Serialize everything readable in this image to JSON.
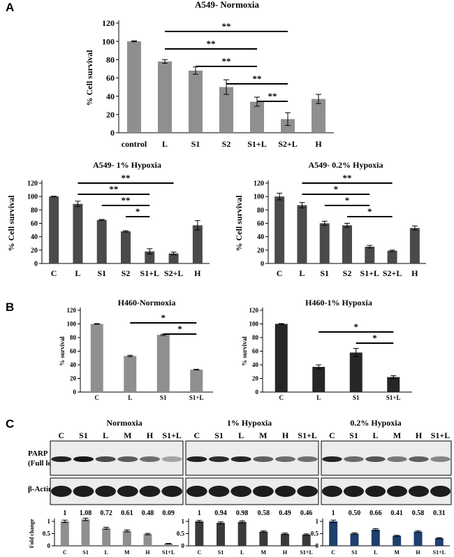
{
  "panels": [
    {
      "label": "A"
    },
    {
      "label": "B"
    },
    {
      "label": "C"
    }
  ],
  "chart_data": [
    {
      "type": "bar",
      "title": "A549- Normoxia",
      "ylabel": "% Cell survival",
      "xlabel": "",
      "categories": [
        "control",
        "L",
        "S1",
        "S2",
        "S1+L",
        "S2+L",
        "H"
      ],
      "values": [
        100,
        78,
        68,
        50,
        34,
        15,
        37
      ],
      "errors": [
        0.5,
        2,
        4,
        8,
        5,
        7,
        5
      ],
      "ylim": [
        0,
        120
      ],
      "yticks": [
        0,
        20,
        40,
        60,
        80,
        100,
        120
      ],
      "bar_color": "#8f8f8f",
      "significance": [
        {
          "from": "L",
          "to": "S2+L",
          "label": "**"
        },
        {
          "from": "L",
          "to": "S1+L",
          "label": "**"
        },
        {
          "from": "S1",
          "to": "S1+L",
          "label": "**"
        },
        {
          "from": "S2",
          "to": "S2+L",
          "label": "**"
        },
        {
          "from": "S1+L",
          "to": "S2+L",
          "label": "**"
        }
      ]
    },
    {
      "type": "bar",
      "title": "A549- 1% Hypoxia",
      "ylabel": "% Cell survival",
      "xlabel": "",
      "categories": [
        "C",
        "L",
        "S1",
        "S2",
        "S1+L",
        "S2+L",
        "H"
      ],
      "values": [
        100,
        89,
        65,
        48,
        18,
        15,
        57
      ],
      "errors": [
        0.5,
        4,
        0.8,
        1,
        4,
        2,
        7
      ],
      "ylim": [
        0,
        120
      ],
      "yticks": [
        0,
        20,
        40,
        60,
        80,
        100,
        120
      ],
      "bar_color": "#4a4a4a",
      "significance": [
        {
          "from": "L",
          "to": "S2+L",
          "label": "**"
        },
        {
          "from": "L",
          "to": "S1+L",
          "label": "**"
        },
        {
          "from": "S1",
          "to": "S1+L",
          "label": "**"
        },
        {
          "from": "S2",
          "to": "S1+L",
          "label": "*"
        }
      ]
    },
    {
      "type": "bar",
      "title": "A549- 0.2% Hypoxia",
      "ylabel": "% Cell survival",
      "xlabel": "",
      "categories": [
        "C",
        "L",
        "S1",
        "S2",
        "S1+L",
        "S2+L",
        "H"
      ],
      "values": [
        100,
        87,
        60,
        57,
        25,
        19,
        53
      ],
      "errors": [
        5,
        4,
        3,
        3,
        2,
        1,
        3
      ],
      "ylim": [
        0,
        120
      ],
      "yticks": [
        0,
        20,
        40,
        60,
        80,
        100,
        120
      ],
      "bar_color": "#4a4a4a",
      "significance": [
        {
          "from": "L",
          "to": "S2+L",
          "label": "**"
        },
        {
          "from": "L",
          "to": "S1+L",
          "label": "*"
        },
        {
          "from": "S1",
          "to": "S1+L",
          "label": "*"
        },
        {
          "from": "S2",
          "to": "S2+L",
          "label": "*"
        }
      ]
    },
    {
      "type": "bar",
      "title": "H460-Normoxia",
      "ylabel": "% survival",
      "xlabel": "",
      "categories": [
        "C",
        "L",
        "S1",
        "S1+L"
      ],
      "values": [
        100,
        53,
        84,
        33
      ],
      "errors": [
        0.5,
        1,
        1,
        0.5
      ],
      "ylim": [
        0,
        120
      ],
      "yticks": [
        0,
        20,
        40,
        60,
        80,
        100,
        120
      ],
      "bar_color": "#8f8f8f",
      "significance": [
        {
          "from": "L",
          "to": "S1+L",
          "label": "*"
        },
        {
          "from": "S1",
          "to": "S1+L",
          "label": "*"
        }
      ]
    },
    {
      "type": "bar",
      "title": "H460-1% Hypoxia",
      "ylabel": "% survival",
      "xlabel": "",
      "categories": [
        "C",
        "L",
        "S1",
        "S1+L"
      ],
      "values": [
        100,
        37,
        58,
        22
      ],
      "errors": [
        0.5,
        3,
        6,
        2
      ],
      "ylim": [
        0,
        120
      ],
      "yticks": [
        0,
        20,
        40,
        60,
        80,
        100,
        120
      ],
      "bar_color": "#262626",
      "significance": [
        {
          "from": "L",
          "to": "S1+L",
          "label": "*"
        },
        {
          "from": "S1",
          "to": "S1+L",
          "label": "*"
        }
      ]
    },
    {
      "type": "bar",
      "title": "Normoxia",
      "ylabel": "Fold change",
      "xlabel": "",
      "categories": [
        "C",
        "S1",
        "L",
        "M",
        "H",
        "S1+L"
      ],
      "values": [
        1,
        1.08,
        0.72,
        0.61,
        0.48,
        0.09
      ],
      "value_labels": [
        "1",
        "1.08",
        "0.72",
        "0.61",
        "0.48",
        "0.09"
      ],
      "errors": [
        0.05,
        0.05,
        0.04,
        0.04,
        0.03,
        0.01
      ],
      "ylim": [
        0,
        1
      ],
      "yticks": [
        0,
        0.5,
        1
      ],
      "ytick_labels": [
        "0",
        "0.5",
        "1"
      ],
      "bar_color": "#8f8f8f"
    },
    {
      "type": "bar",
      "title": "1% Hypoxia",
      "ylabel": "",
      "xlabel": "",
      "categories": [
        "C",
        "S1",
        "L",
        "M",
        "H",
        "S1+L"
      ],
      "values": [
        1,
        0.94,
        0.98,
        0.58,
        0.49,
        0.46
      ],
      "value_labels": [
        "1",
        "0.94",
        "0.98",
        "0.58",
        "0.49",
        "0.46"
      ],
      "errors": [
        0.04,
        0.04,
        0.04,
        0.03,
        0.03,
        0.03
      ],
      "ylim": [
        0,
        1
      ],
      "yticks": [
        0,
        0.5,
        1
      ],
      "ytick_labels": [
        "0",
        "0.5",
        "1"
      ],
      "bar_color": "#3a3a3a"
    },
    {
      "type": "bar",
      "title": "0.2% Hypoxia",
      "ylabel": "",
      "xlabel": "",
      "categories": [
        "C",
        "S1",
        "L",
        "M",
        "H",
        "S1+L"
      ],
      "values": [
        1,
        0.5,
        0.66,
        0.41,
        0.58,
        0.31
      ],
      "value_labels": [
        "1",
        "0.50",
        "0.66",
        "0.41",
        "0.58",
        "0.31"
      ],
      "errors": [
        0.05,
        0.03,
        0.04,
        0.02,
        0.03,
        0.02
      ],
      "ylim": [
        0,
        1
      ],
      "yticks": [
        0,
        0.5,
        1
      ],
      "ytick_labels": [
        "0",
        "0.5",
        "1"
      ],
      "bar_color": "#1f3f6e"
    }
  ],
  "blot": {
    "panels": [
      {
        "title": "Normoxia",
        "lanes": [
          "C",
          "S1",
          "L",
          "M",
          "H",
          "S1+L"
        ]
      },
      {
        "title": "1% Hypoxia",
        "lanes": [
          "C",
          "S1",
          "L",
          "M",
          "H",
          "S1+L"
        ]
      },
      {
        "title": "0.2% Hypoxia",
        "lanes": [
          "C",
          "S1",
          "L",
          "M",
          "H",
          "S1+L"
        ]
      }
    ],
    "row_labels": {
      "parp": "PARP",
      "parp_sub": "(Full length)",
      "actin": "β-Actin"
    }
  }
}
